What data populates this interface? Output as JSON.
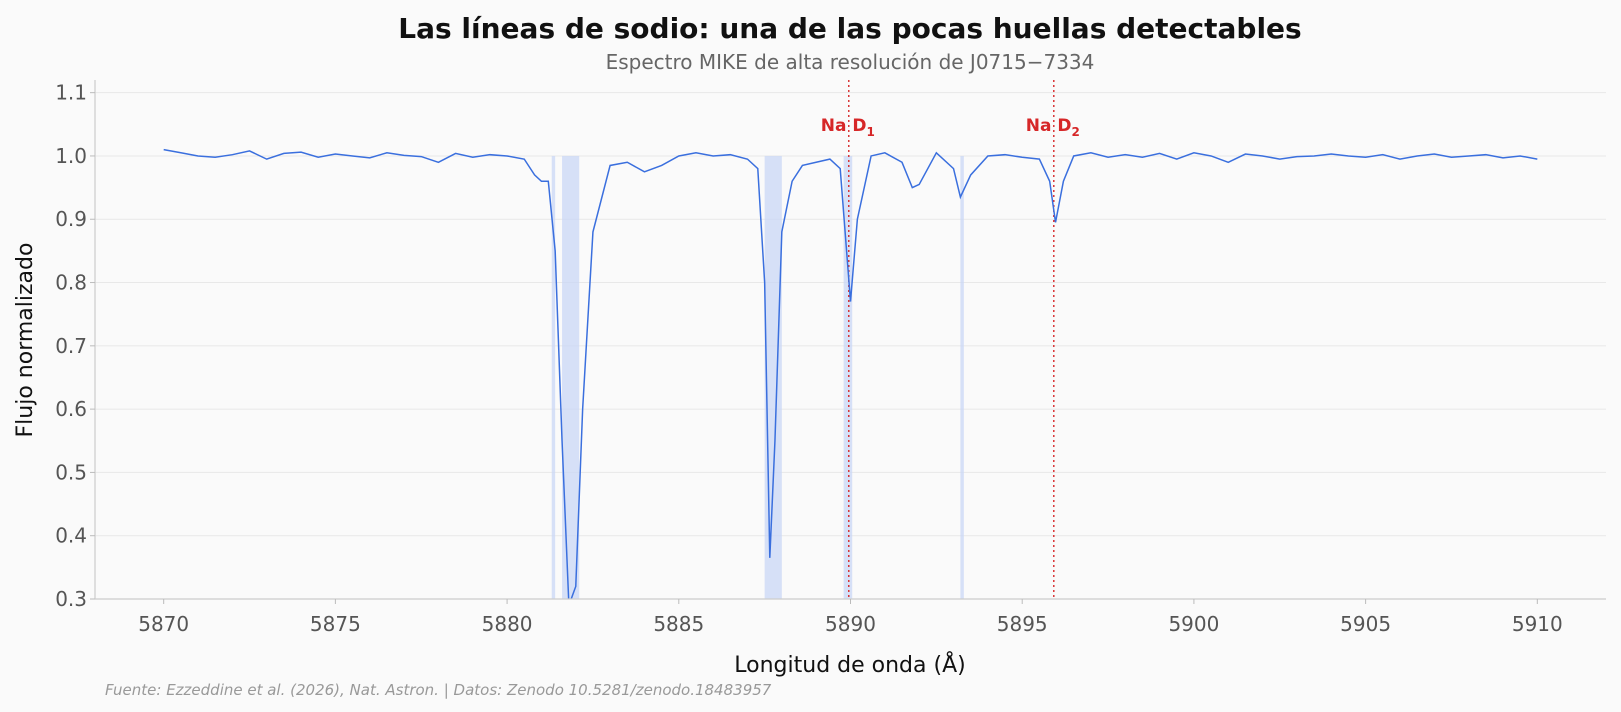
{
  "chart_data": {
    "type": "line",
    "title": "Las líneas de sodio: una de las pocas huellas detectables",
    "subtitle": "Espectro MIKE de alta resolución de J0715−7334",
    "xlabel": "Longitud de onda (Å)",
    "ylabel": "Flujo normalizado",
    "source": "Fuente: Ezzeddine et al. (2026), Nat. Astron. | Datos: Zenodo 10.5281/zenodo.18483957",
    "xlim": [
      5868,
      5912
    ],
    "ylim": [
      0.3,
      1.12
    ],
    "xticks": [
      5870,
      5875,
      5880,
      5885,
      5890,
      5895,
      5900,
      5905,
      5910
    ],
    "xtick_labels": [
      "5870",
      "5875",
      "5880",
      "5885",
      "5890",
      "5895",
      "5900",
      "5905",
      "5910"
    ],
    "yticks": [
      0.3,
      0.4,
      0.5,
      0.6,
      0.7,
      0.8,
      0.9,
      1.0,
      1.1
    ],
    "ytick_labels": [
      "0.3",
      "0.4",
      "0.5",
      "0.6",
      "0.7",
      "0.8",
      "0.9",
      "1.0",
      "1.1"
    ],
    "grid": "horizontal",
    "series": [
      {
        "color": "#3a6fde",
        "x": [
          5870.0,
          5870.5,
          5871.0,
          5871.5,
          5872.0,
          5872.5,
          5873.0,
          5873.5,
          5874.0,
          5874.5,
          5875.0,
          5875.5,
          5876.0,
          5876.5,
          5877.0,
          5877.5,
          5878.0,
          5878.5,
          5879.0,
          5879.5,
          5880.0,
          5880.5,
          5880.8,
          5881.0,
          5881.2,
          5881.4,
          5881.6,
          5881.8,
          5882.0,
          5882.2,
          5882.5,
          5883.0,
          5883.5,
          5884.0,
          5884.5,
          5885.0,
          5885.5,
          5886.0,
          5886.5,
          5887.0,
          5887.3,
          5887.5,
          5887.65,
          5887.8,
          5888.0,
          5888.3,
          5888.6,
          5889.0,
          5889.4,
          5889.7,
          5889.9,
          5890.0,
          5890.2,
          5890.6,
          5891.0,
          5891.5,
          5891.8,
          5892.0,
          5892.5,
          5893.0,
          5893.2,
          5893.5,
          5894.0,
          5894.5,
          5895.0,
          5895.5,
          5895.8,
          5895.97,
          5896.2,
          5896.5,
          5897.0,
          5897.5,
          5898.0,
          5898.5,
          5899.0,
          5899.5,
          5900.0,
          5900.5,
          5901.0,
          5901.5,
          5902.0,
          5902.5,
          5903.0,
          5903.5,
          5904.0,
          5904.5,
          5905.0,
          5905.5,
          5906.0,
          5906.5,
          5907.0,
          5907.5,
          5908.0,
          5908.5,
          5909.0,
          5909.5,
          5910.0
        ],
        "y": [
          1.01,
          1.005,
          1.0,
          0.998,
          1.002,
          1.008,
          0.995,
          1.004,
          1.006,
          0.998,
          1.003,
          1.0,
          0.997,
          1.005,
          1.001,
          0.999,
          0.99,
          1.004,
          0.998,
          1.002,
          1.0,
          0.995,
          0.97,
          0.96,
          0.96,
          0.85,
          0.55,
          0.29,
          0.32,
          0.6,
          0.88,
          0.985,
          0.99,
          0.975,
          0.985,
          1.0,
          1.005,
          1.0,
          1.002,
          0.995,
          0.98,
          0.8,
          0.365,
          0.55,
          0.88,
          0.96,
          0.985,
          0.99,
          0.995,
          0.98,
          0.84,
          0.77,
          0.9,
          1.0,
          1.005,
          0.99,
          0.95,
          0.955,
          1.005,
          0.98,
          0.935,
          0.97,
          1.0,
          1.002,
          0.998,
          0.995,
          0.96,
          0.895,
          0.96,
          1.0,
          1.005,
          0.998,
          1.002,
          0.998,
          1.004,
          0.995,
          1.005,
          1.0,
          0.99,
          1.003,
          1.0,
          0.995,
          0.999,
          1.0,
          1.003,
          1.0,
          0.998,
          1.002,
          0.995,
          1.0,
          1.003,
          0.998,
          1.0,
          1.002,
          0.997,
          1.0,
          0.995
        ]
      }
    ],
    "shaded_regions": [
      {
        "x0": 5881.3,
        "x1": 5881.4,
        "color": "#c9d7f5"
      },
      {
        "x0": 5881.6,
        "x1": 5882.1,
        "color": "#c9d7f5"
      },
      {
        "x0": 5887.5,
        "x1": 5888.0,
        "color": "#c9d7f5"
      },
      {
        "x0": 5889.8,
        "x1": 5890.05,
        "color": "#c9d7f5"
      },
      {
        "x0": 5893.2,
        "x1": 5893.3,
        "color": "#c9d7f5"
      }
    ],
    "annotations": [
      {
        "x": 5889.95,
        "label": "Na D",
        "sub": "1",
        "color": "#d62728"
      },
      {
        "x": 5895.92,
        "label": "Na D",
        "sub": "2",
        "color": "#d62728"
      }
    ]
  }
}
